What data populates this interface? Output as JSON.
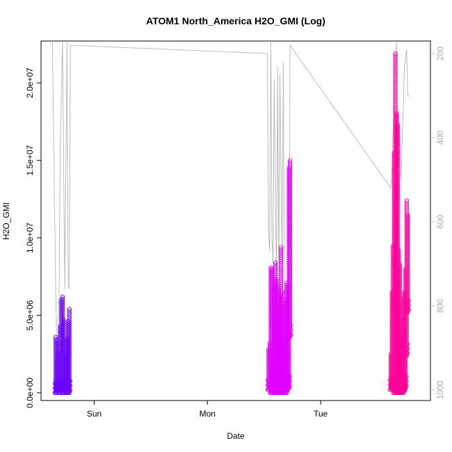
{
  "chart_data": {
    "type": "scatter",
    "title": "ATOM1 North_America H2O_GMI (Log)",
    "xlabel": "Date",
    "ylabel": "H2O_GMI",
    "x_ticks": [
      {
        "label": "Sun",
        "day": 1.0
      },
      {
        "label": "Mon",
        "day": 2.0
      },
      {
        "label": "Tue",
        "day": 3.0
      }
    ],
    "xlim": [
      0.53,
      3.97
    ],
    "ylim": [
      -500000,
      22700000
    ],
    "y_ticks": [
      {
        "label": "0.0e+00",
        "value": 0
      },
      {
        "label": "5.0e+06",
        "value": 5000000
      },
      {
        "label": "1.0e+07",
        "value": 10000000
      },
      {
        "label": "1.5e+07",
        "value": 15000000
      },
      {
        "label": "2.0e+07",
        "value": 20000000
      }
    ],
    "right_axis": {
      "label": "",
      "ylim": [
        1025,
        170
      ],
      "ticks": [
        200,
        400,
        600,
        800,
        1000
      ],
      "color": "#bbbbbb"
    },
    "grid": false,
    "series": [
      {
        "color": "#6a00ff",
        "bursts": [
          {
            "day": 0.66,
            "low": 0,
            "high": 3600000
          },
          {
            "day": 0.67,
            "low": 0,
            "high": 3400000
          },
          {
            "day": 0.68,
            "low": 100000,
            "high": 2600000
          },
          {
            "day": 0.7,
            "low": 0,
            "high": 4300000
          },
          {
            "day": 0.71,
            "low": 200000,
            "high": 6000000
          },
          {
            "day": 0.72,
            "low": 0,
            "high": 6200000
          },
          {
            "day": 0.73,
            "low": 0,
            "high": 4700000
          },
          {
            "day": 0.75,
            "low": 0,
            "high": 2400000
          },
          {
            "day": 0.76,
            "low": 0,
            "high": 3500000
          },
          {
            "day": 0.77,
            "low": 0,
            "high": 4600000
          },
          {
            "day": 0.78,
            "low": 0,
            "high": 5400000
          }
        ]
      },
      {
        "color": "#e100ff",
        "bursts": [
          {
            "day": 2.54,
            "low": 200000,
            "high": 2800000
          },
          {
            "day": 2.55,
            "low": 300000,
            "high": 3200000
          },
          {
            "day": 2.56,
            "low": 0,
            "high": 8100000
          },
          {
            "day": 2.57,
            "low": 0,
            "high": 8000000
          },
          {
            "day": 2.58,
            "low": 100000,
            "high": 2000000
          },
          {
            "day": 2.59,
            "low": 0,
            "high": 7000000
          },
          {
            "day": 2.6,
            "low": 0,
            "high": 8400000
          },
          {
            "day": 2.61,
            "low": 0,
            "high": 7300000
          },
          {
            "day": 2.62,
            "low": 0,
            "high": 4500000
          },
          {
            "day": 2.63,
            "low": 0,
            "high": 6800000
          },
          {
            "day": 2.64,
            "low": 0,
            "high": 6200000
          },
          {
            "day": 2.65,
            "low": 0,
            "high": 9400000
          },
          {
            "day": 2.66,
            "low": 0,
            "high": 6500000
          },
          {
            "day": 2.67,
            "low": 0,
            "high": 5600000
          },
          {
            "day": 2.68,
            "low": 0,
            "high": 4200000
          },
          {
            "day": 2.69,
            "low": 0,
            "high": 6000000
          },
          {
            "day": 2.7,
            "low": 0,
            "high": 7100000
          },
          {
            "day": 2.71,
            "low": 200000,
            "high": 6900000
          },
          {
            "day": 2.72,
            "low": 300000,
            "high": 14500000
          },
          {
            "day": 2.73,
            "low": 3600000,
            "high": 15000000
          }
        ]
      },
      {
        "color": "#ff0099",
        "bursts": [
          {
            "day": 3.62,
            "low": 200000,
            "high": 2500000
          },
          {
            "day": 3.63,
            "low": 300000,
            "high": 6500000
          },
          {
            "day": 3.64,
            "low": 200000,
            "high": 9500000
          },
          {
            "day": 3.65,
            "low": 0,
            "high": 15500000
          },
          {
            "day": 3.66,
            "low": 100000,
            "high": 21900000
          },
          {
            "day": 3.67,
            "low": 0,
            "high": 18000000
          },
          {
            "day": 3.68,
            "low": 0,
            "high": 17300000
          },
          {
            "day": 3.69,
            "low": 0,
            "high": 9200000
          },
          {
            "day": 3.7,
            "low": 0,
            "high": 8300000
          },
          {
            "day": 3.71,
            "low": 0,
            "high": 6100000
          },
          {
            "day": 3.72,
            "low": 0,
            "high": 4800000
          },
          {
            "day": 3.73,
            "low": 0,
            "high": 4000000
          },
          {
            "day": 3.74,
            "low": 100000,
            "high": 6500000
          },
          {
            "day": 3.75,
            "low": 300000,
            "high": 8000000
          },
          {
            "day": 3.76,
            "low": 2400000,
            "high": 12400000
          },
          {
            "day": 3.77,
            "low": 5200000,
            "high": 11500000
          }
        ]
      }
    ],
    "pressure_trace": {
      "color": "#bbbbbb",
      "points": [
        [
          0.63,
          170
        ],
        [
          0.66,
          770
        ],
        [
          0.67,
          920
        ],
        [
          0.69,
          770
        ],
        [
          0.7,
          420
        ],
        [
          0.72,
          170
        ],
        [
          0.74,
          760
        ],
        [
          0.76,
          170
        ],
        [
          0.77,
          750
        ],
        [
          0.78,
          760
        ],
        [
          0.79,
          180
        ],
        [
          2.53,
          200
        ],
        [
          2.54,
          630
        ],
        [
          2.55,
          670
        ],
        [
          2.56,
          170
        ],
        [
          2.57,
          640
        ],
        [
          2.58,
          700
        ],
        [
          2.59,
          260
        ],
        [
          2.61,
          760
        ],
        [
          2.62,
          230
        ],
        [
          2.63,
          730
        ],
        [
          2.64,
          250
        ],
        [
          2.66,
          700
        ],
        [
          2.67,
          220
        ],
        [
          2.68,
          770
        ],
        [
          2.7,
          760
        ],
        [
          2.72,
          760
        ],
        [
          2.73,
          180
        ],
        [
          3.62,
          520
        ],
        [
          3.63,
          470
        ],
        [
          3.64,
          380
        ],
        [
          3.65,
          320
        ],
        [
          3.66,
          240
        ],
        [
          3.67,
          170
        ],
        [
          3.68,
          470
        ],
        [
          3.69,
          330
        ],
        [
          3.71,
          500
        ],
        [
          3.72,
          410
        ],
        [
          3.74,
          230
        ],
        [
          3.76,
          190
        ],
        [
          3.77,
          300
        ],
        [
          3.78,
          300
        ]
      ]
    }
  }
}
